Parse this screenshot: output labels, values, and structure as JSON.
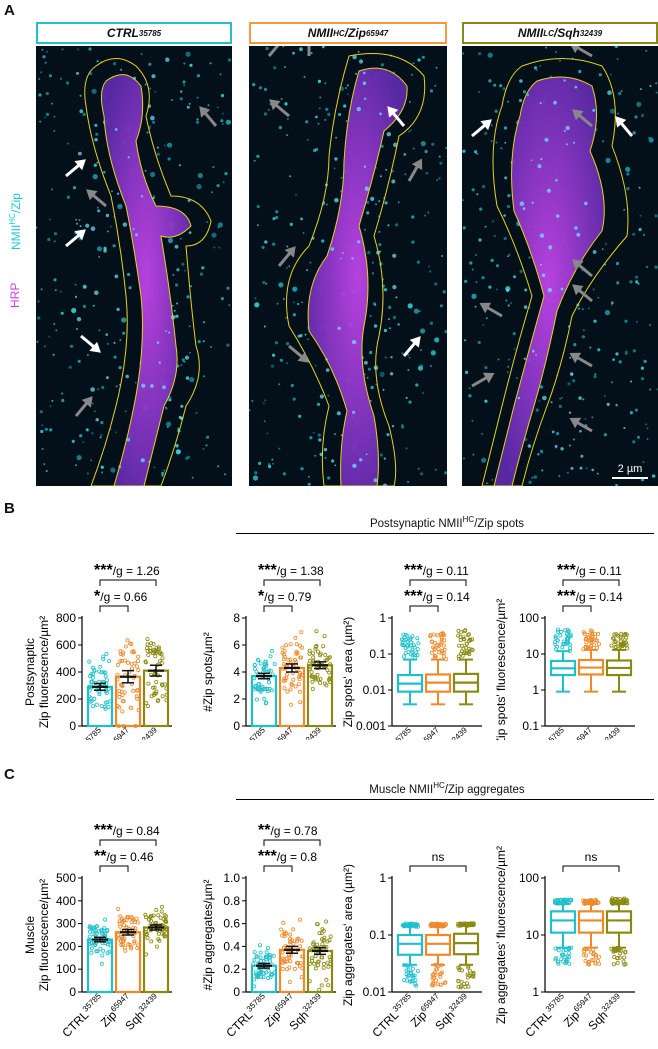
{
  "panel_letters": {
    "a": "A",
    "b": "B",
    "c": "C"
  },
  "microscopy": {
    "channels": [
      {
        "text": "NMII",
        "sup": "HC",
        "rest": "/Zip",
        "color": "#22c8d4"
      },
      {
        "text": "HRP",
        "sup": "",
        "rest": "",
        "color": "#d23be0"
      }
    ],
    "scale_bar": "2 µm",
    "panels": [
      {
        "name": "CTRL",
        "sup": "35785",
        "color": "#22c0c8"
      },
      {
        "name": "NMII",
        "sup": "HC",
        "name2": "/Zip",
        "sup2": "65947",
        "color": "#f39a3a"
      },
      {
        "name": "NMII",
        "sup": "LC",
        "name2": "/Sqh",
        "sup2": "32439",
        "color": "#8a8a12"
      }
    ]
  },
  "colors": {
    "ctrl": "#1fc0cc",
    "zip": "#f0892a",
    "sqh": "#8a8a12"
  },
  "chart_data": [
    {
      "id": "B1",
      "type": "bar",
      "ylabel_lines": [
        "Postsynaptic",
        "Zip fluorescence/µm²"
      ],
      "ticks": [
        0,
        200,
        400,
        600,
        800
      ],
      "scale": "linear",
      "ylim": [
        0,
        800
      ],
      "categories": [
        {
          "name": "CTRL",
          "sup": "35785"
        },
        {
          "name": "Zip",
          "sup": "65947"
        },
        {
          "name": "Sqh",
          "sup": "32439"
        }
      ],
      "values": [
        290,
        365,
        410
      ],
      "errors": [
        25,
        45,
        40
      ],
      "sig": [
        {
          "from": 0,
          "to": 2,
          "stars": "***",
          "text": "/g = 1.26"
        },
        {
          "from": 0,
          "to": 1,
          "stars": "*",
          "text": "/g = 0.66"
        }
      ]
    },
    {
      "id": "B2",
      "type": "bar",
      "ylabel_lines": [
        "#Zip spots/µm²"
      ],
      "ticks": [
        0,
        2,
        4,
        6,
        8
      ],
      "scale": "linear",
      "ylim": [
        0,
        8
      ],
      "categories": [
        {
          "name": "CTRL",
          "sup": "35785"
        },
        {
          "name": "Zip",
          "sup": "65947"
        },
        {
          "name": "Sqh",
          "sup": "32439"
        }
      ],
      "values": [
        3.7,
        4.3,
        4.5
      ],
      "errors": [
        0.2,
        0.3,
        0.25
      ],
      "sig": [
        {
          "from": 0,
          "to": 2,
          "stars": "***",
          "text": "/g = 1.38"
        },
        {
          "from": 0,
          "to": 1,
          "stars": "*",
          "text": "/g = 0.79"
        }
      ]
    },
    {
      "id": "B3",
      "type": "box",
      "ylabel_lines": [
        "Zip spots' area (µm²)"
      ],
      "ticks": [
        0.001,
        0.01,
        0.1,
        1
      ],
      "tick_labels": [
        "0.001",
        "0.01",
        "0.1",
        "1"
      ],
      "scale": "log",
      "ylim": [
        0.001,
        1
      ],
      "categories": [
        {
          "name": "CTRL",
          "sup": "35785"
        },
        {
          "name": "Zip",
          "sup": "65947"
        },
        {
          "name": "Sqh",
          "sup": "32439"
        }
      ],
      "boxes": [
        {
          "whisker_low": 0.004,
          "q1": 0.009,
          "median": 0.015,
          "q3": 0.026,
          "whisker_high": 0.07,
          "outlier_high": 0.35,
          "outlier_low": 0
        },
        {
          "whisker_low": 0.004,
          "q1": 0.009,
          "median": 0.016,
          "q3": 0.027,
          "whisker_high": 0.07,
          "outlier_high": 0.42,
          "outlier_low": 0
        },
        {
          "whisker_low": 0.004,
          "q1": 0.009,
          "median": 0.016,
          "q3": 0.028,
          "whisker_high": 0.07,
          "outlier_high": 0.48,
          "outlier_low": 0
        }
      ],
      "sig": [
        {
          "from": 0,
          "to": 2,
          "stars": "***",
          "text": "/g = 0.11"
        },
        {
          "from": 0,
          "to": 1,
          "stars": "***",
          "text": "/g = 0.14"
        }
      ]
    },
    {
      "id": "B4",
      "type": "box",
      "ylabel_lines": [
        "Zip spots' fluorescence/µm²"
      ],
      "ticks": [
        0.1,
        1,
        10,
        100
      ],
      "tick_labels": [
        "0.1",
        "1",
        "10",
        "100"
      ],
      "scale": "log",
      "ylim": [
        0.1,
        100
      ],
      "categories": [
        {
          "name": "CTRL",
          "sup": "35785"
        },
        {
          "name": "Zip",
          "sup": "65947"
        },
        {
          "name": "Sqh",
          "sup": "32439"
        }
      ],
      "boxes": [
        {
          "whisker_low": 0.9,
          "q1": 2.6,
          "median": 4.0,
          "q3": 6.4,
          "whisker_high": 12,
          "outlier_high": 48,
          "outlier_low": 0
        },
        {
          "whisker_low": 0.9,
          "q1": 2.7,
          "median": 4.2,
          "q3": 6.8,
          "whisker_high": 13,
          "outlier_high": 45,
          "outlier_low": 0
        },
        {
          "whisker_low": 0.9,
          "q1": 2.6,
          "median": 4.1,
          "q3": 6.6,
          "whisker_high": 13,
          "outlier_high": 42,
          "outlier_low": 0
        }
      ],
      "sig": [
        {
          "from": 0,
          "to": 2,
          "stars": "***",
          "text": "/g = 0.11"
        },
        {
          "from": 0,
          "to": 1,
          "stars": "***",
          "text": "/g = 0.14"
        }
      ]
    },
    {
      "id": "C1",
      "type": "bar",
      "ylabel_lines": [
        "Muscle",
        "Zip fluorescence/µm²"
      ],
      "ticks": [
        0,
        100,
        200,
        300,
        400,
        500
      ],
      "scale": "linear",
      "ylim": [
        0,
        500
      ],
      "categories": [
        {
          "name": "CTRL",
          "sup": "35785"
        },
        {
          "name": "Zip",
          "sup": "65947"
        },
        {
          "name": "Sqh",
          "sup": "32439"
        }
      ],
      "values": [
        230,
        262,
        283
      ],
      "errors": [
        10,
        12,
        11
      ],
      "sig": [
        {
          "from": 0,
          "to": 2,
          "stars": "***",
          "text": "/g = 0.84"
        },
        {
          "from": 0,
          "to": 1,
          "stars": "**",
          "text": "/g = 0.46"
        }
      ]
    },
    {
      "id": "C2",
      "type": "bar",
      "ylabel_lines": [
        "#Zip aggregates/µm²"
      ],
      "ticks": [
        0,
        0.2,
        0.4,
        0.6,
        0.8,
        1.0
      ],
      "tick_labels": [
        "0",
        "0.2",
        "0.4",
        "0.6",
        "0.8",
        "1.0"
      ],
      "scale": "linear",
      "ylim": [
        0,
        1.0
      ],
      "categories": [
        {
          "name": "CTRL",
          "sup": "35785"
        },
        {
          "name": "Zip",
          "sup": "65947"
        },
        {
          "name": "Sqh",
          "sup": "32439"
        }
      ],
      "values": [
        0.23,
        0.37,
        0.36
      ],
      "errors": [
        0.02,
        0.03,
        0.03
      ],
      "sig": [
        {
          "from": 0,
          "to": 2,
          "stars": "**",
          "text": "/g = 0.78"
        },
        {
          "from": 0,
          "to": 1,
          "stars": "***",
          "text": "/g = 0.8"
        }
      ]
    },
    {
      "id": "C3",
      "type": "box",
      "ylabel_lines": [
        "Zip aggregates' area (µm²)"
      ],
      "ticks": [
        0.01,
        0.1,
        1
      ],
      "tick_labels": [
        "0.01",
        "0.1",
        "1"
      ],
      "scale": "log",
      "ylim": [
        0.01,
        1
      ],
      "categories": [
        {
          "name": "CTRL",
          "sup": "35785"
        },
        {
          "name": "Zip",
          "sup": "65947"
        },
        {
          "name": "Sqh",
          "sup": "32439"
        }
      ],
      "boxes": [
        {
          "whisker_low": 0.03,
          "q1": 0.045,
          "median": 0.07,
          "q3": 0.1,
          "whisker_high": 0.14,
          "outlier_high": 0.16,
          "outlier_low": 0.012
        },
        {
          "whisker_low": 0.03,
          "q1": 0.045,
          "median": 0.07,
          "q3": 0.1,
          "whisker_high": 0.14,
          "outlier_high": 0.16,
          "outlier_low": 0.012
        },
        {
          "whisker_low": 0.03,
          "q1": 0.046,
          "median": 0.072,
          "q3": 0.105,
          "whisker_high": 0.145,
          "outlier_high": 0.16,
          "outlier_low": 0.012
        }
      ],
      "sig": [
        {
          "from": 0,
          "to": 2,
          "stars": "",
          "text": "ns"
        }
      ]
    },
    {
      "id": "C4",
      "type": "box",
      "ylabel_lines": [
        "Zip aggregates' fluorescence/µm²"
      ],
      "ticks": [
        1,
        10,
        100
      ],
      "tick_labels": [
        "1",
        "10",
        "100"
      ],
      "scale": "log",
      "ylim": [
        1,
        100
      ],
      "categories": [
        {
          "name": "CTRL",
          "sup": "35785"
        },
        {
          "name": "Zip",
          "sup": "65947"
        },
        {
          "name": "Sqh",
          "sup": "32439"
        }
      ],
      "boxes": [
        {
          "whisker_low": 6,
          "q1": 11,
          "median": 18,
          "q3": 26,
          "whisker_high": 35,
          "outlier_high": 42,
          "outlier_low": 3
        },
        {
          "whisker_low": 6,
          "q1": 11,
          "median": 18,
          "q3": 26,
          "whisker_high": 35,
          "outlier_high": 42,
          "outlier_low": 3
        },
        {
          "whisker_low": 6,
          "q1": 11,
          "median": 18,
          "q3": 26,
          "whisker_high": 35,
          "outlier_high": 44,
          "outlier_low": 3
        }
      ],
      "sig": [
        {
          "from": 0,
          "to": 2,
          "stars": "",
          "text": "ns"
        }
      ]
    }
  ],
  "section_titles": {
    "b": {
      "pre": "Postsynaptic NMII",
      "sup": "HC",
      "post": "/Zip spots"
    },
    "c": {
      "pre": "Muscle NMII",
      "sup": "HC",
      "post": "/Zip aggregates"
    }
  }
}
